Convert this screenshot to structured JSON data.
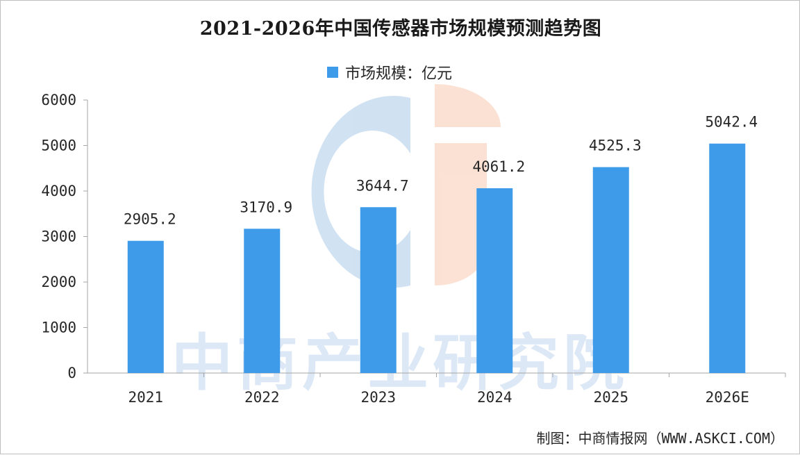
{
  "chart_data": {
    "type": "bar",
    "title": "2021-2026年中国传感器市场规模预测趋势图",
    "categories": [
      "2021",
      "2022",
      "2023",
      "2024",
      "2025",
      "2026E"
    ],
    "series": [
      {
        "name": "市场规模：亿元",
        "values": [
          2905.2,
          3170.9,
          3644.7,
          4061.2,
          4525.3,
          5042.4
        ]
      }
    ],
    "data_labels": [
      "2905.2",
      "3170.9",
      "3644.7",
      "4061.2",
      "4525.3",
      "5042.4"
    ],
    "ylim": [
      0,
      6000
    ],
    "yticks": [
      "0",
      "1000",
      "2000",
      "3000",
      "4000",
      "5000",
      "6000"
    ],
    "xlabel": "",
    "ylabel": "",
    "legend_position": "top-center",
    "grid": false,
    "bar_color": "#3d9be9"
  },
  "watermark": {
    "text": "中商产业研究院"
  },
  "source_note": "制图：中商情报网（WWW.ASKCI.COM）"
}
